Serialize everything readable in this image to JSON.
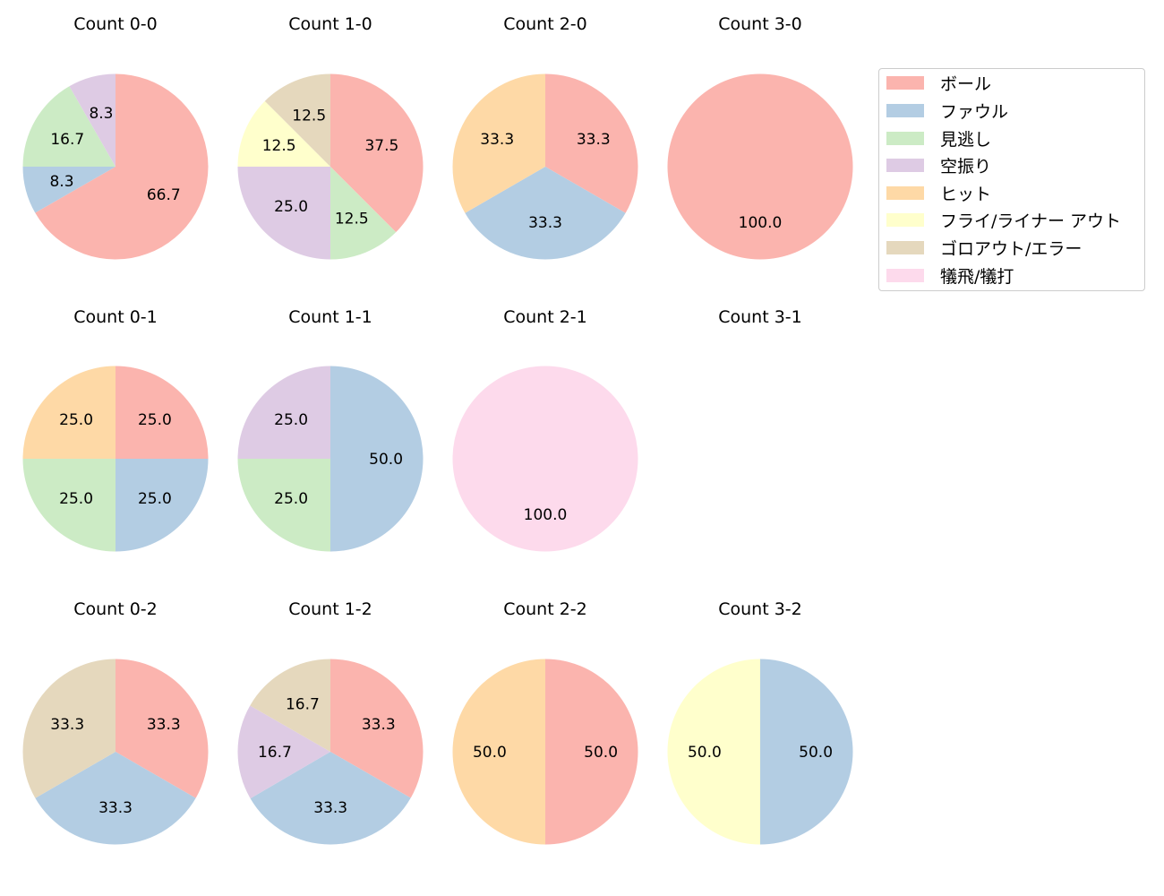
{
  "chart_data": {
    "type": "pie",
    "title": "",
    "categories": [
      "ボール",
      "ファウル",
      "見逃し",
      "空振り",
      "ヒット",
      "フライ/ライナー アウト",
      "ゴロアウト/エラー",
      "犠飛/犠打"
    ],
    "colors": [
      "#fbb4ae",
      "#b3cde3",
      "#ccebc5",
      "#decbe4",
      "#fed9a6",
      "#ffffcc",
      "#e5d8bd",
      "#fddaec"
    ],
    "legend_position": "upper right",
    "charts": [
      {
        "title": "Count 0-0",
        "values": [
          66.7,
          8.3,
          16.7,
          8.3,
          0,
          0,
          0,
          0
        ]
      },
      {
        "title": "Count 1-0",
        "values": [
          37.5,
          0,
          12.5,
          25.0,
          0,
          12.5,
          12.5,
          0
        ]
      },
      {
        "title": "Count 2-0",
        "values": [
          33.3,
          33.3,
          0,
          0,
          33.3,
          0,
          0,
          0
        ]
      },
      {
        "title": "Count 3-0",
        "values": [
          100.0,
          0,
          0,
          0,
          0,
          0,
          0,
          0
        ]
      },
      {
        "title": "Count 0-1",
        "values": [
          25.0,
          25.0,
          25.0,
          0,
          25.0,
          0,
          0,
          0
        ]
      },
      {
        "title": "Count 1-1",
        "values": [
          0,
          50.0,
          25.0,
          25.0,
          0,
          0,
          0,
          0
        ]
      },
      {
        "title": "Count 2-1",
        "values": [
          0,
          0,
          0,
          0,
          0,
          0,
          0,
          100.0
        ]
      },
      {
        "title": "Count 3-1",
        "values": []
      },
      {
        "title": "Count 0-2",
        "values": [
          33.3,
          33.3,
          0,
          0,
          0,
          0,
          33.3,
          0
        ]
      },
      {
        "title": "Count 1-2",
        "values": [
          33.3,
          33.3,
          0,
          16.7,
          0,
          0,
          16.7,
          0
        ]
      },
      {
        "title": "Count 2-2",
        "values": [
          50.0,
          0,
          0,
          0,
          50.0,
          0,
          0,
          0
        ]
      },
      {
        "title": "Count 3-2",
        "values": [
          0,
          50.0,
          0,
          0,
          0,
          50.0,
          0,
          0
        ]
      }
    ]
  },
  "legend": {
    "items": [
      {
        "label": "ボール",
        "color": "#fbb4ae"
      },
      {
        "label": "ファウル",
        "color": "#b3cde3"
      },
      {
        "label": "見逃し",
        "color": "#ccebc5"
      },
      {
        "label": "空振り",
        "color": "#decbe4"
      },
      {
        "label": "ヒット",
        "color": "#fed9a6"
      },
      {
        "label": "フライ/ライナー アウト",
        "color": "#ffffcc"
      },
      {
        "label": "ゴロアウト/エラー",
        "color": "#e5d8bd"
      },
      {
        "label": "犠飛/犠打",
        "color": "#fddaec"
      }
    ]
  }
}
